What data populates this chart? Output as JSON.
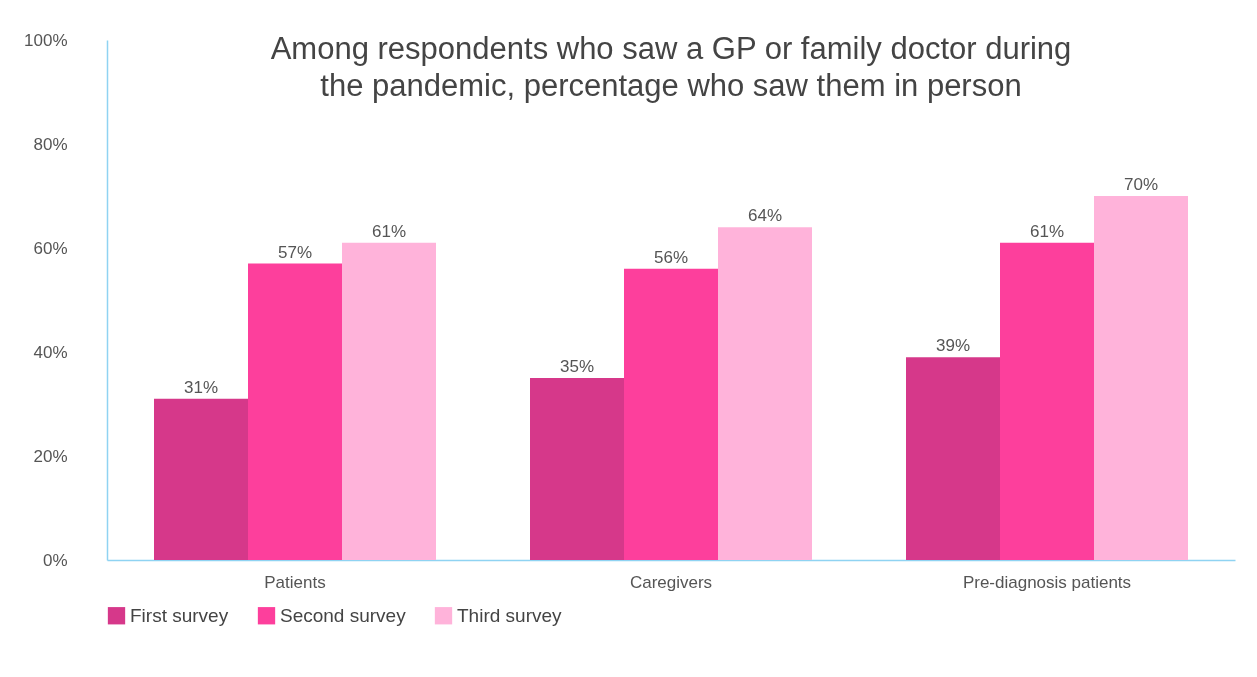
{
  "chart_data": {
    "type": "bar",
    "title": "Among respondents who saw a GP or family doctor during the pandemic, percentage who saw them in person",
    "categories": [
      "Patients",
      "Caregivers",
      "Pre-diagnosis patients"
    ],
    "series": [
      {
        "name": "First survey",
        "color": "#d6388a",
        "values": [
          31,
          35,
          39
        ],
        "value_labels": [
          "31%",
          "35%",
          "39%"
        ]
      },
      {
        "name": "Second survey",
        "color": "#fd3f9c",
        "values": [
          57,
          56,
          61
        ],
        "value_labels": [
          "57%",
          "56%",
          "61%"
        ]
      },
      {
        "name": "Third survey",
        "color": "#ffb3da",
        "values": [
          61,
          64,
          70
        ],
        "value_labels": [
          "61%",
          "64%",
          "70%"
        ]
      }
    ],
    "ylim": [
      0,
      100
    ],
    "yticks": [
      {
        "value": 0,
        "label": "0%"
      },
      {
        "value": 20,
        "label": "20%"
      },
      {
        "value": 40,
        "label": "40%"
      },
      {
        "value": 60,
        "label": "60%"
      },
      {
        "value": 80,
        "label": "80%"
      },
      {
        "value": 100,
        "label": "100%"
      }
    ],
    "grid": false,
    "legend": "bottom"
  }
}
